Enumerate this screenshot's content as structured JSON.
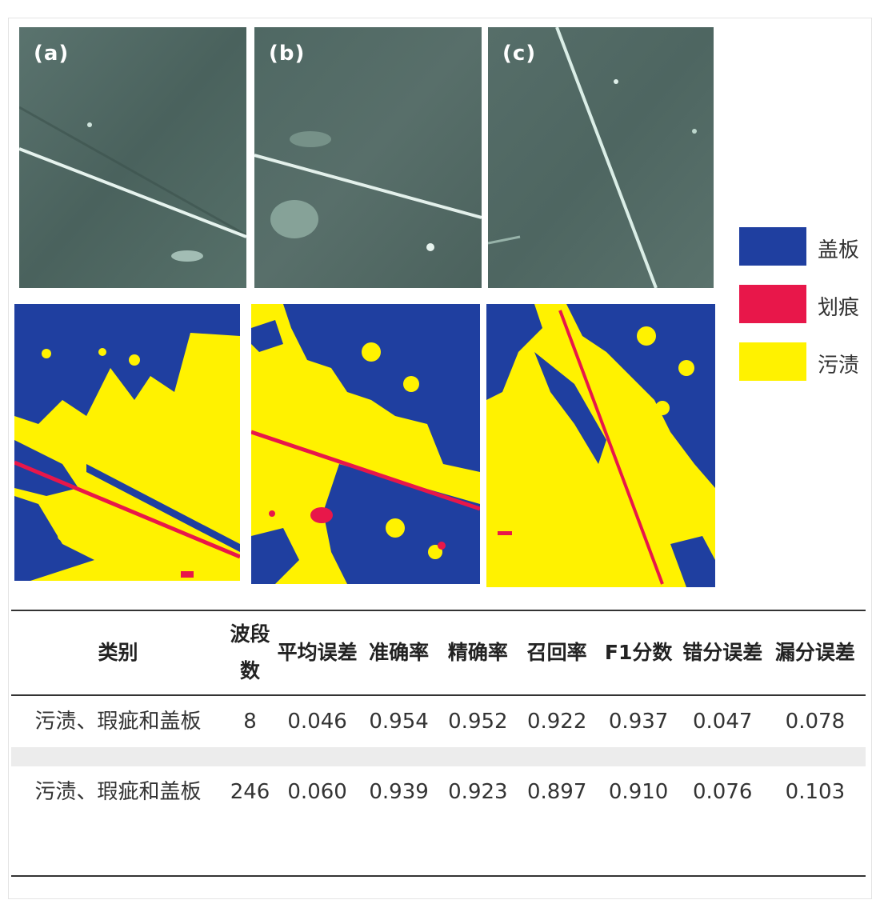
{
  "figure": {
    "panel_labels": [
      "(a)",
      "(b)",
      "(c)"
    ],
    "legend": [
      {
        "label": "盖板",
        "color": "#1f3fa0"
      },
      {
        "label": "划痕",
        "color": "#e8174a"
      },
      {
        "label": "污渍",
        "color": "#fff200"
      }
    ]
  },
  "table": {
    "headers": [
      "类别",
      "波段数",
      "平均误差",
      "准确率",
      "精确率",
      "召回率",
      "F1分数",
      "错分误差",
      "漏分误差"
    ],
    "rows": [
      [
        "污渍、瑕疵和盖板",
        "8",
        "0.046",
        "0.954",
        "0.952",
        "0.922",
        "0.937",
        "0.047",
        "0.078"
      ],
      [
        "污渍、瑕疵和盖板",
        "246",
        "0.060",
        "0.939",
        "0.923",
        "0.897",
        "0.910",
        "0.076",
        "0.103"
      ]
    ]
  }
}
